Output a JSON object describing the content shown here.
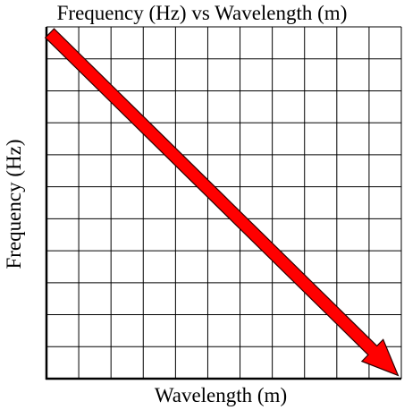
{
  "chart_data": {
    "type": "line",
    "title": "Frequency (Hz) vs Wavelength (m)",
    "xlabel": "Wavelength (m)",
    "ylabel": "Frequency (Hz)",
    "grid": true,
    "grid_divisions": {
      "x": 11,
      "y": 11
    },
    "xlim": [
      0,
      11
    ],
    "ylim": [
      0,
      11
    ],
    "series": [
      {
        "x": [
          0.1,
          10.9
        ],
        "y": [
          10.8,
          0.1
        ],
        "color": "#ff0000",
        "style": "arrow"
      }
    ]
  }
}
